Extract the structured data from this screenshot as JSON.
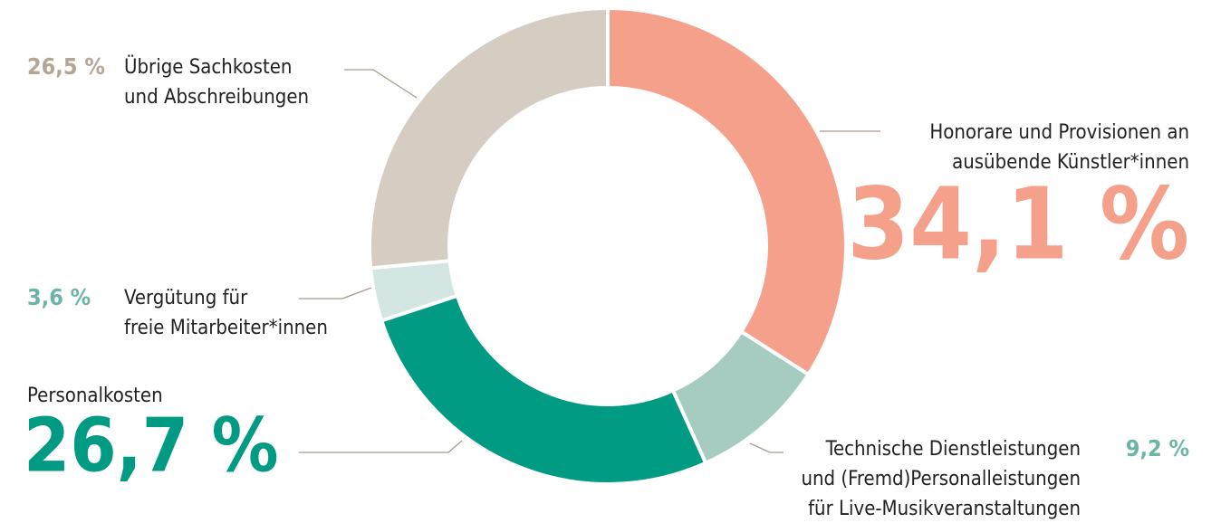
{
  "chart_data": {
    "type": "donut",
    "categories": [
      [
        "Honorare und Provisionen an",
        "ausübende Künstler*innen"
      ],
      [
        "Technische Dienstleistungen",
        "und (Fremd)Personalleistungen",
        "für Live-Musikveranstaltungen"
      ],
      [
        "Personalkosten"
      ],
      [
        "Vergütung für",
        "freie Mitarbeiter*innen"
      ],
      [
        "Übrige Sachkosten",
        "und Abschreibungen"
      ]
    ],
    "values": [
      34.1,
      9.2,
      26.7,
      3.6,
      26.5
    ],
    "value_labels": [
      "34,1 %",
      "9,2 %",
      "26,7 %",
      "3,6 %",
      "26,5 %"
    ],
    "colors": [
      "#f4a08a",
      "#a6cbc0",
      "#009b82",
      "#d3e6e1",
      "#d5ccc2"
    ],
    "label_colors": [
      "#f4a08a",
      "#6bb5a5",
      "#009b82",
      "#6bb5a5",
      "#b5a595"
    ]
  }
}
